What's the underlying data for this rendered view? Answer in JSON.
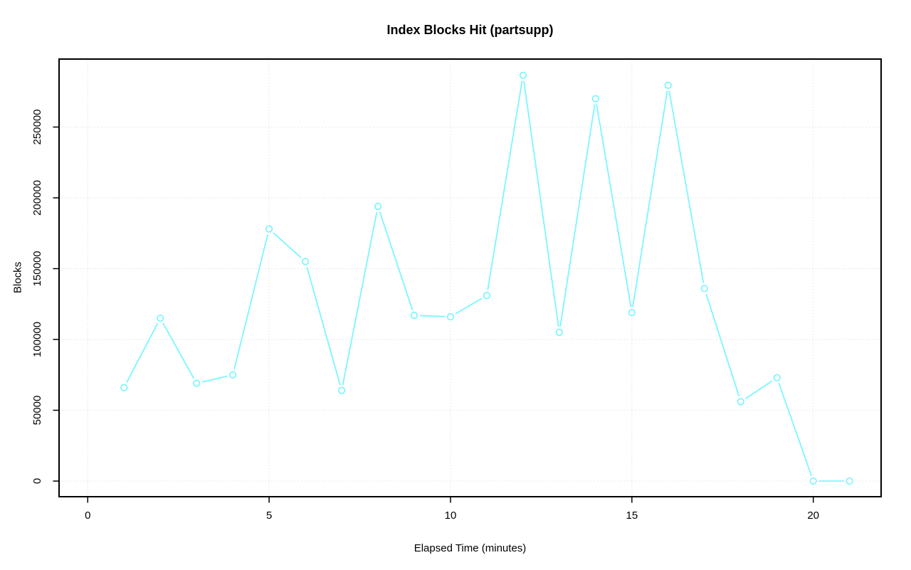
{
  "page": {
    "background_color": "#ffffff"
  },
  "chart_data": {
    "type": "line",
    "title": "Index Blocks Hit (partsupp)",
    "xlabel": "Elapsed Time (minutes)",
    "ylabel": "Blocks",
    "x": [
      1,
      2,
      3,
      4,
      5,
      6,
      7,
      8,
      9,
      10,
      11,
      12,
      13,
      14,
      15,
      16,
      17,
      18,
      19,
      20,
      21
    ],
    "values": [
      66000,
      115000,
      69000,
      75000,
      178000,
      155000,
      64000,
      194000,
      117000,
      116000,
      131000,
      286500,
      105000,
      270000,
      119000,
      279500,
      136000,
      56000,
      73000,
      0,
      0
    ],
    "x_ticks": [
      0,
      5,
      10,
      15,
      20
    ],
    "y_ticks": [
      0,
      50000,
      100000,
      150000,
      200000,
      250000
    ],
    "xlim": [
      -0.79,
      21.87
    ],
    "ylim": [
      -11050,
      298000
    ],
    "grid": "dotted",
    "legend": "none",
    "marker": "open-circle",
    "line_color": "#7CF6FF",
    "grid_color": "#D6D6D6",
    "axis_color": "#000000",
    "text_color": "#000000"
  }
}
